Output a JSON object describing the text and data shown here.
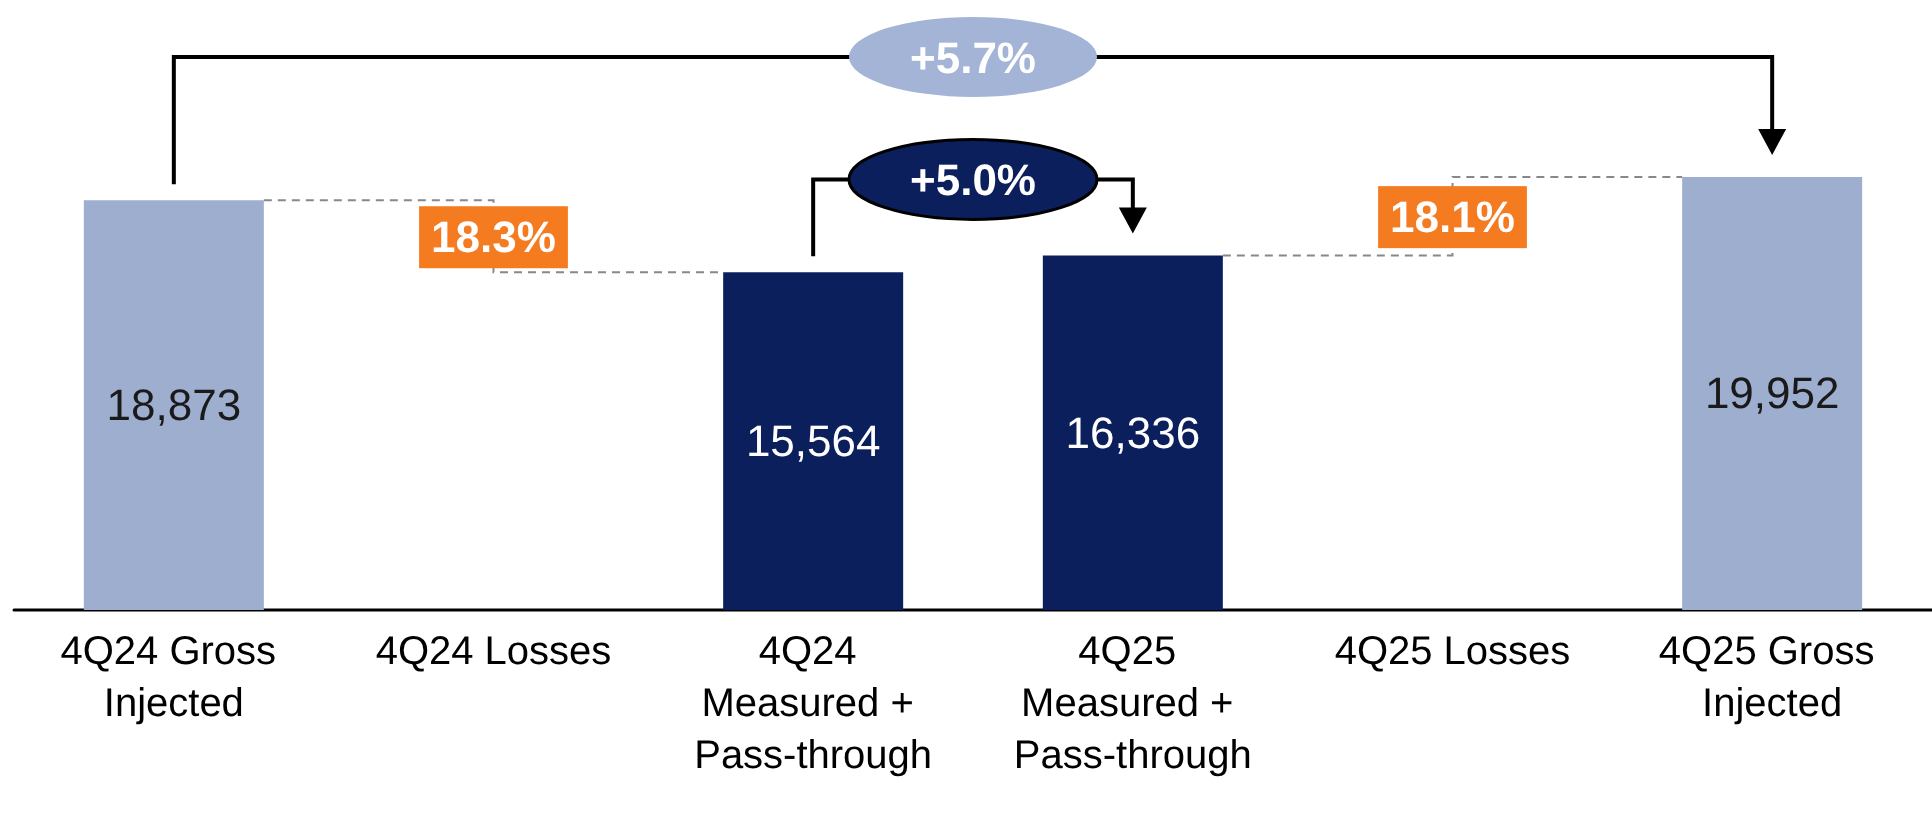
{
  "chart_data": {
    "type": "bar",
    "categories": [
      "4Q24 Gross Injected",
      "4Q24 Losses",
      "4Q24 Measured + Pass-through",
      "4Q25 Measured + Pass-through",
      "4Q25 Losses",
      "4Q25 Gross Injected"
    ],
    "values": [
      18873,
      null,
      15564,
      16336,
      null,
      19952
    ],
    "colors": [
      "#9daecf",
      null,
      "#0b1f5c",
      "#0b1f5c",
      null,
      "#9daecf"
    ],
    "value_labels": [
      "18,873",
      null,
      "15,564",
      "16,336",
      null,
      "19,952"
    ],
    "annotations": [
      "18.3%",
      "18.1%",
      "+5.7%",
      "+5.0%"
    ],
    "grid": false
  }
}
